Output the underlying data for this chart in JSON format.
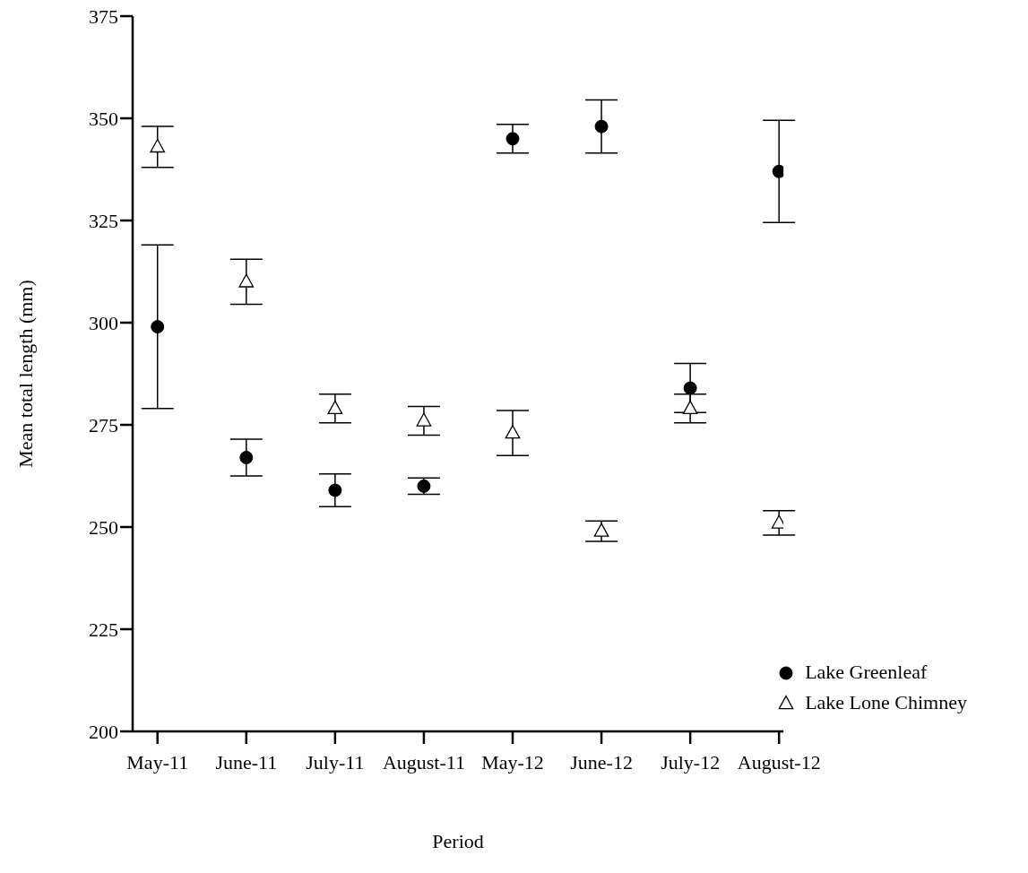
{
  "chart_data": {
    "type": "scatter",
    "xlabel": "Period",
    "ylabel": "Mean total length (mm)",
    "categories": [
      "May-11",
      "June-11",
      "July-11",
      "August-11",
      "May-12",
      "June-12",
      "July-12",
      "August-12"
    ],
    "series": [
      {
        "name": "Lake Greenleaf",
        "color": "#000000",
        "marker": "circle",
        "values": [
          299,
          267,
          259,
          260,
          345,
          348,
          284,
          337
        ],
        "errors": [
          20,
          4.5,
          4,
          2,
          3.5,
          6.5,
          6,
          12.5
        ]
      },
      {
        "name": "Lake Lone Chimney",
        "color": "#000000",
        "marker": "triangle",
        "values": [
          343,
          310,
          279,
          276,
          273,
          249,
          279,
          251
        ],
        "errors": [
          5,
          5.5,
          3.5,
          3.5,
          5.5,
          2.5,
          3.5,
          3
        ]
      }
    ],
    "ylim": [
      200,
      375
    ],
    "yticks": [
      200,
      225,
      250,
      275,
      300,
      325,
      350,
      375
    ],
    "grid": false,
    "legend": "bottom right"
  }
}
